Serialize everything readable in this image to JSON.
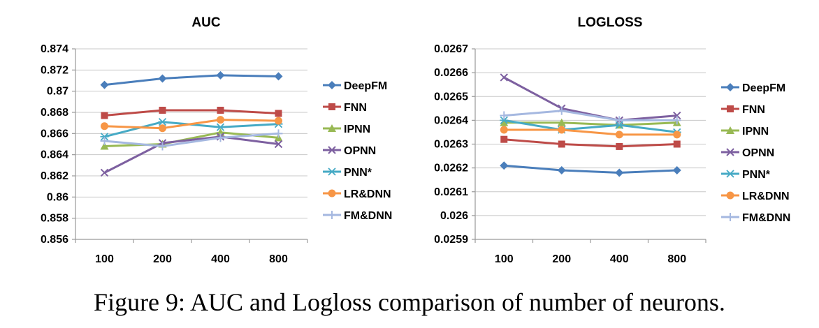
{
  "caption": "Figure 9:  AUC and Logloss comparison of number of neurons.",
  "series_styles": [
    {
      "name": "DeepFM",
      "color": "#4a7ebb",
      "marker": "diamond"
    },
    {
      "name": "FNN",
      "color": "#be4b48",
      "marker": "square"
    },
    {
      "name": "IPNN",
      "color": "#98b954",
      "marker": "triangle"
    },
    {
      "name": "OPNN",
      "color": "#7d60a0",
      "marker": "x"
    },
    {
      "name": "PNN*",
      "color": "#46aac5",
      "marker": "asterisk"
    },
    {
      "name": "LR&DNN",
      "color": "#f79646",
      "marker": "circle"
    },
    {
      "name": "FM&DNN",
      "color": "#a5b8e0",
      "marker": "plus"
    }
  ],
  "chart_data": [
    {
      "type": "line",
      "title": "AUC",
      "categories": [
        "100",
        "200",
        "400",
        "800"
      ],
      "ylim": [
        0.856,
        0.874
      ],
      "yticks": [
        "0.874",
        "0.872",
        "0.87",
        "0.868",
        "0.866",
        "0.864",
        "0.862",
        "0.86",
        "0.858",
        "0.856"
      ],
      "grid": true,
      "legend": "right",
      "series": [
        {
          "name": "DeepFM",
          "values": [
            0.8706,
            0.8712,
            0.8715,
            0.8714
          ]
        },
        {
          "name": "FNN",
          "values": [
            0.8677,
            0.8682,
            0.8682,
            0.8679
          ]
        },
        {
          "name": "IPNN",
          "values": [
            0.8648,
            0.865,
            0.8661,
            0.8656
          ]
        },
        {
          "name": "OPNN",
          "values": [
            0.8623,
            0.8651,
            0.8657,
            0.865
          ]
        },
        {
          "name": "PNN*",
          "values": [
            0.8657,
            0.8671,
            0.8666,
            0.8669
          ]
        },
        {
          "name": "LR&DNN",
          "values": [
            0.8667,
            0.8665,
            0.8673,
            0.8672
          ]
        },
        {
          "name": "FM&DNN",
          "values": [
            0.8653,
            0.8648,
            0.8656,
            0.866
          ]
        }
      ]
    },
    {
      "type": "line",
      "title": "LOGLOSS",
      "categories": [
        "100",
        "200",
        "400",
        "800"
      ],
      "ylim": [
        0.0259,
        0.0267
      ],
      "yticks": [
        "0.0267",
        "0.0266",
        "0.0265",
        "0.0264",
        "0.0263",
        "0.0262",
        "0.0261",
        "0.026",
        "0.0259"
      ],
      "grid": true,
      "legend": "right",
      "series": [
        {
          "name": "DeepFM",
          "values": [
            0.02621,
            0.02619,
            0.02618,
            0.02619
          ]
        },
        {
          "name": "FNN",
          "values": [
            0.02632,
            0.0263,
            0.02629,
            0.0263
          ]
        },
        {
          "name": "IPNN",
          "values": [
            0.02639,
            0.02639,
            0.02638,
            0.02639
          ]
        },
        {
          "name": "OPNN",
          "values": [
            0.02658,
            0.02645,
            0.0264,
            0.02642
          ]
        },
        {
          "name": "PNN*",
          "values": [
            0.0264,
            0.02636,
            0.02638,
            0.02635
          ]
        },
        {
          "name": "LR&DNN",
          "values": [
            0.02636,
            0.02636,
            0.02634,
            0.02634
          ]
        },
        {
          "name": "FM&DNN",
          "values": [
            0.02642,
            0.02644,
            0.0264,
            0.0264
          ]
        }
      ]
    }
  ]
}
